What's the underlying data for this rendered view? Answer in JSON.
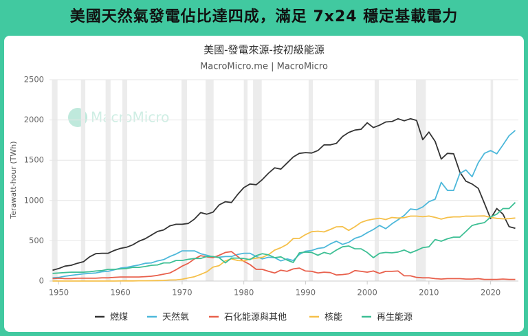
{
  "headline": "美國天然氣發電佔比達四成，滿足 7x24 穩定基載電力",
  "chart_data": {
    "type": "line",
    "title": "美國-發電來源-按初級能源",
    "subtitle": "MacroMicro.me | MacroMicro",
    "watermark": "MacroMicro",
    "y_label": "Terawatt-hour (TWh)",
    "xlim": [
      1948.5,
      2024.5
    ],
    "xticks": [
      1950,
      1960,
      1970,
      1980,
      1990,
      2000,
      2010,
      2020
    ],
    "ylim": [
      0,
      2500
    ],
    "yticks": [
      0,
      500,
      1000,
      1500,
      2000,
      2500
    ],
    "grid": true,
    "shaded_periods": [
      [
        1948.9,
        1949.8
      ],
      [
        1953.6,
        1954.3
      ],
      [
        1957.6,
        1958.4
      ],
      [
        1960.3,
        1961.1
      ],
      [
        1969.9,
        1970.8
      ],
      [
        1973.8,
        1975.1
      ],
      [
        1980.0,
        1980.6
      ],
      [
        1981.5,
        1982.9
      ],
      [
        1990.5,
        1991.2
      ],
      [
        2001.2,
        2001.9
      ],
      [
        2007.9,
        2009.5
      ],
      [
        2020.0,
        2020.4
      ]
    ],
    "shade_color": "#ececec",
    "legend": "bottom",
    "x": [
      1949,
      1950,
      1951,
      1952,
      1953,
      1954,
      1955,
      1956,
      1957,
      1958,
      1959,
      1960,
      1961,
      1962,
      1963,
      1964,
      1965,
      1966,
      1967,
      1968,
      1969,
      1970,
      1971,
      1972,
      1973,
      1974,
      1975,
      1976,
      1977,
      1978,
      1979,
      1980,
      1981,
      1982,
      1983,
      1984,
      1985,
      1986,
      1987,
      1988,
      1989,
      1990,
      1991,
      1992,
      1993,
      1994,
      1995,
      1996,
      1997,
      1998,
      1999,
      2000,
      2001,
      2002,
      2003,
      2004,
      2005,
      2006,
      2007,
      2008,
      2009,
      2010,
      2011,
      2012,
      2013,
      2014,
      2015,
      2016,
      2017,
      2018,
      2019,
      2020,
      2021,
      2022,
      2023,
      2024
    ],
    "series": [
      {
        "name": "燃煤",
        "color": "#333333",
        "values": [
          135,
          155,
          185,
          195,
          220,
          240,
          300,
          340,
          345,
          345,
          380,
          405,
          420,
          450,
          495,
          525,
          570,
          615,
          635,
          685,
          705,
          705,
          715,
          770,
          850,
          830,
          855,
          945,
          985,
          975,
          1075,
          1160,
          1205,
          1195,
          1260,
          1340,
          1405,
          1390,
          1465,
          1540,
          1585,
          1595,
          1590,
          1620,
          1690,
          1690,
          1710,
          1795,
          1845,
          1875,
          1885,
          1965,
          1905,
          1935,
          1975,
          1980,
          2015,
          1990,
          2015,
          1995,
          1755,
          1850,
          1735,
          1515,
          1585,
          1580,
          1355,
          1240,
          1205,
          1150,
          965,
          775,
          900,
          830,
          675,
          655
        ]
      },
      {
        "name": "天然氣",
        "color": "#4db8da",
        "values": [
          40,
          45,
          60,
          70,
          80,
          90,
          95,
          100,
          115,
          120,
          140,
          160,
          170,
          185,
          200,
          220,
          225,
          250,
          265,
          305,
          335,
          375,
          375,
          375,
          340,
          320,
          300,
          295,
          305,
          305,
          330,
          345,
          345,
          305,
          275,
          295,
          290,
          250,
          275,
          255,
          330,
          370,
          380,
          405,
          415,
          460,
          495,
          455,
          480,
          530,
          555,
          600,
          640,
          690,
          650,
          710,
          760,
          815,
          895,
          885,
          920,
          985,
          1015,
          1225,
          1125,
          1125,
          1335,
          1380,
          1295,
          1470,
          1585,
          1620,
          1580,
          1690,
          1805,
          1870
        ]
      },
      {
        "name": "石化能源與其他",
        "color": "#e8604c",
        "values": [
          30,
          35,
          30,
          30,
          35,
          35,
          35,
          35,
          40,
          40,
          45,
          50,
          50,
          50,
          50,
          55,
          60,
          70,
          85,
          100,
          140,
          185,
          220,
          275,
          315,
          300,
          290,
          320,
          355,
          365,
          305,
          245,
          205,
          145,
          145,
          120,
          100,
          135,
          120,
          150,
          160,
          125,
          120,
          100,
          110,
          105,
          75,
          80,
          90,
          130,
          120,
          110,
          125,
          95,
          120,
          120,
          125,
          65,
          65,
          45,
          40,
          40,
          30,
          25,
          30,
          30,
          30,
          25,
          25,
          30,
          20,
          20,
          20,
          25,
          20,
          20
        ]
      },
      {
        "name": "核能",
        "color": "#f5c04a",
        "values": [
          0,
          0,
          0,
          0,
          0,
          0,
          0,
          0,
          0,
          0,
          0,
          1,
          2,
          2,
          3,
          3,
          4,
          6,
          8,
          13,
          14,
          22,
          38,
          54,
          83,
          114,
          173,
          191,
          251,
          276,
          255,
          251,
          273,
          283,
          294,
          328,
          384,
          414,
          455,
          527,
          529,
          577,
          613,
          619,
          610,
          640,
          673,
          675,
          629,
          674,
          728,
          754,
          769,
          780,
          764,
          789,
          782,
          787,
          806,
          806,
          799,
          807,
          790,
          769,
          789,
          797,
          797,
          806,
          805,
          807,
          809,
          790,
          778,
          772,
          775,
          782
        ]
      },
      {
        "name": "再生能源",
        "color": "#3dbf94",
        "values": [
          95,
          100,
          105,
          110,
          110,
          110,
          115,
          125,
          130,
          145,
          145,
          150,
          155,
          170,
          170,
          180,
          195,
          200,
          225,
          225,
          255,
          255,
          270,
          280,
          280,
          305,
          305,
          290,
          225,
          285,
          285,
          280,
          265,
          315,
          340,
          325,
          290,
          300,
          260,
          230,
          350,
          360,
          355,
          320,
          355,
          335,
          385,
          425,
          435,
          400,
          400,
          355,
          290,
          345,
          355,
          350,
          360,
          385,
          350,
          380,
          415,
          425,
          515,
          495,
          525,
          545,
          545,
          615,
          690,
          710,
          725,
          795,
          830,
          900,
          900,
          975
        ]
      }
    ]
  }
}
